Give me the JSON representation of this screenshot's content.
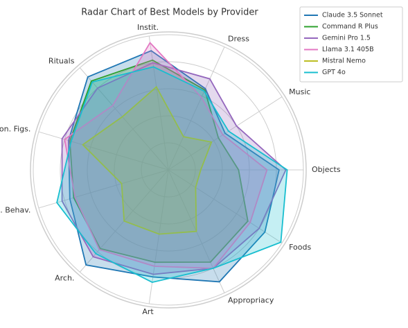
{
  "chart_data": {
    "type": "radar",
    "title": "Radar Chart of Best Models by Provider",
    "categories": [
      "Objects",
      "Music",
      "Dress",
      "Instit.",
      "Rituals",
      "Icon. Figs.",
      "Vis. Behav.",
      "Arch.",
      "Art",
      "Appropriacy",
      "Foods"
    ],
    "rlim": [
      0,
      100
    ],
    "rticks": [
      20,
      40,
      60,
      80,
      100
    ],
    "grid": true,
    "legend": "upper right",
    "series": [
      {
        "name": "Claude 3.5 Sonnet",
        "color": "#1f77b4",
        "values": [
          82,
          50,
          66,
          89,
          91,
          77,
          76,
          93,
          80,
          91,
          85
        ]
      },
      {
        "name": "Command R Plus",
        "color": "#2ca02c",
        "values": [
          52,
          44,
          65,
          82,
          87,
          76,
          73,
          77,
          69,
          75,
          70
        ]
      },
      {
        "name": "Gemini Pro 1.5",
        "color": "#9467bd",
        "values": [
          87,
          60,
          74,
          80,
          80,
          82,
          82,
          85,
          78,
          80,
          80
        ]
      },
      {
        "name": "Llama 3.1 405B",
        "color": "#e377c2",
        "values": [
          73,
          48,
          59,
          95,
          63,
          80,
          72,
          78,
          72,
          80,
          72
        ]
      },
      {
        "name": "Mistral Nemo",
        "color": "#bcbd22",
        "values": [
          24,
          38,
          27,
          62,
          52,
          66,
          36,
          50,
          48,
          50,
          24
        ]
      },
      {
        "name": "GPT 4o",
        "color": "#17becf",
        "values": [
          88,
          53,
          64,
          77,
          86,
          75,
          86,
          82,
          84,
          80,
          99
        ]
      }
    ]
  }
}
